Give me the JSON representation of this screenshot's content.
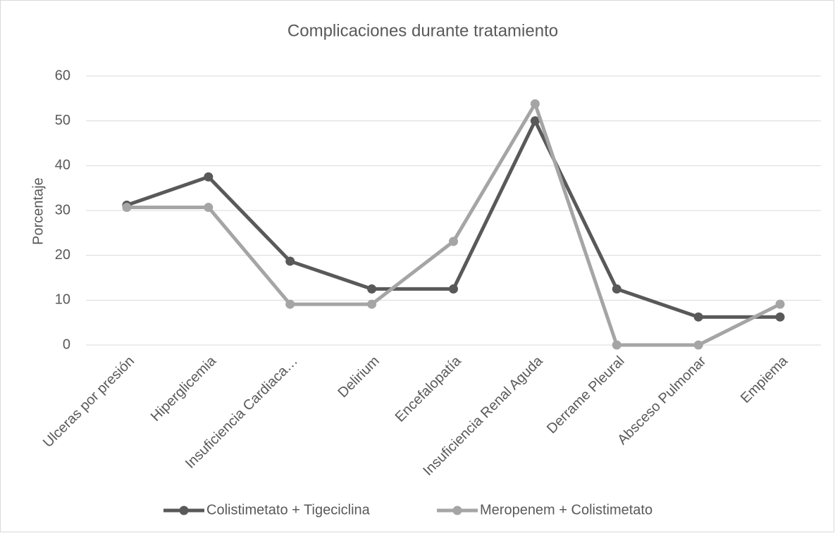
{
  "chart_data": {
    "type": "line",
    "title": "Complicaciones durante tratamiento",
    "y_label": "Porcentaje",
    "categories": [
      "Ulceras por presión",
      "Hiperglicemia",
      "Insuficiencia Cardiaca…",
      "Delirium",
      "Encefalopatía",
      "Insuficiencia Renal Aguda",
      "Derrame Pleural",
      "Absceso Pulmonar",
      "Empiema"
    ],
    "series": [
      {
        "name": "Colistimetato + Tigeciclina",
        "color": "#595959",
        "values": [
          31.2,
          37.5,
          18.7,
          12.5,
          12.5,
          50,
          12.5,
          6.25,
          6.25
        ]
      },
      {
        "name": "Meropenem + Colistimetato",
        "color": "#a5a5a5",
        "values": [
          30.7,
          30.7,
          9.1,
          9.1,
          23.1,
          53.8,
          0,
          0,
          9.1
        ]
      }
    ],
    "ylim": [
      0,
      60
    ],
    "yticks": [
      0,
      10,
      20,
      30,
      40,
      50,
      60
    ],
    "grid": true,
    "legend": "bottom"
  }
}
